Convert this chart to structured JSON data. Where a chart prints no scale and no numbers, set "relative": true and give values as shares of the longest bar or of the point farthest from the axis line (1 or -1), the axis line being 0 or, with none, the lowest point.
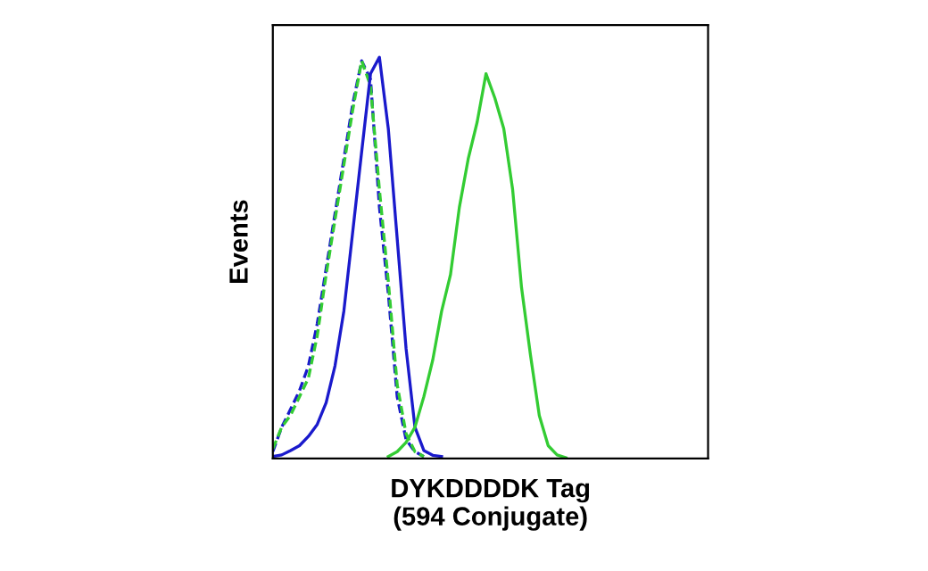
{
  "chart_data": {
    "type": "line",
    "xlabel": "DYKDDDDK Tag\n(594 Conjugate)",
    "ylabel": "Events",
    "relative": true,
    "grid": false,
    "tick_labels": false,
    "marker": "none",
    "categories": [
      null,
      null,
      null,
      null,
      null,
      null,
      null,
      null,
      null,
      null,
      null,
      null,
      null,
      null,
      null,
      null,
      null,
      null,
      null,
      null,
      null,
      null,
      null,
      null,
      null,
      null,
      null,
      null,
      null,
      null,
      null,
      null,
      null,
      null,
      null,
      null,
      null,
      null,
      null,
      null,
      null,
      null,
      null,
      null,
      null,
      null,
      null,
      null,
      null,
      null
    ],
    "series": [
      {
        "color": "#1a1acc",
        "line_style": "dashed",
        "values": [
          0.017,
          0.078,
          0.123,
          0.169,
          0.23,
          0.336,
          0.473,
          0.61,
          0.747,
          0.884,
          0.991,
          0.945,
          0.626,
          0.411,
          0.154,
          0.047,
          0.017,
          0.005,
          null,
          null,
          null,
          null,
          null,
          null,
          null,
          null,
          null,
          null,
          null,
          null,
          null,
          null,
          null,
          null,
          null,
          null,
          null,
          null,
          null,
          null,
          null,
          null,
          null,
          null,
          null,
          null,
          null,
          null,
          null,
          null
        ]
      },
      {
        "color": "#33cc33",
        "line_style": "dashed",
        "values": [
          0.024,
          0.078,
          0.108,
          0.154,
          0.2,
          0.306,
          0.458,
          0.595,
          0.732,
          0.869,
          0.991,
          0.929,
          0.67,
          0.442,
          0.184,
          0.062,
          0.017,
          0.005,
          null,
          null,
          null,
          null,
          null,
          null,
          null,
          null,
          null,
          null,
          null,
          null,
          null,
          null,
          null,
          null,
          null,
          null,
          null,
          null,
          null,
          null,
          null,
          null,
          null,
          null,
          null,
          null,
          null,
          null,
          null,
          null
        ]
      },
      {
        "color": "#1a1acc",
        "line_style": "solid",
        "values": [
          0.005,
          0.009,
          0.02,
          0.032,
          0.055,
          0.085,
          0.139,
          0.231,
          0.368,
          0.566,
          0.764,
          0.959,
          1.0,
          0.822,
          0.548,
          0.274,
          0.078,
          0.02,
          0.008,
          0.005,
          null,
          null,
          null,
          null,
          null,
          null,
          null,
          null,
          null,
          null,
          null,
          null,
          null,
          null,
          null,
          null,
          null,
          null,
          null,
          null,
          null,
          null,
          null,
          null,
          null,
          null,
          null,
          null,
          null,
          null
        ]
      },
      {
        "color": "#33cc33",
        "line_style": "solid",
        "values": [
          null,
          null,
          null,
          null,
          null,
          null,
          null,
          null,
          null,
          null,
          null,
          null,
          null,
          0.005,
          0.017,
          0.04,
          0.078,
          0.154,
          0.245,
          0.367,
          0.458,
          0.626,
          0.747,
          0.838,
          0.959,
          0.898,
          0.822,
          0.67,
          0.426,
          0.259,
          0.107,
          0.032,
          0.009,
          0.002,
          null,
          null,
          null,
          null,
          null,
          null,
          null,
          null,
          null,
          null,
          null,
          null,
          null,
          null,
          null,
          null
        ]
      }
    ]
  }
}
